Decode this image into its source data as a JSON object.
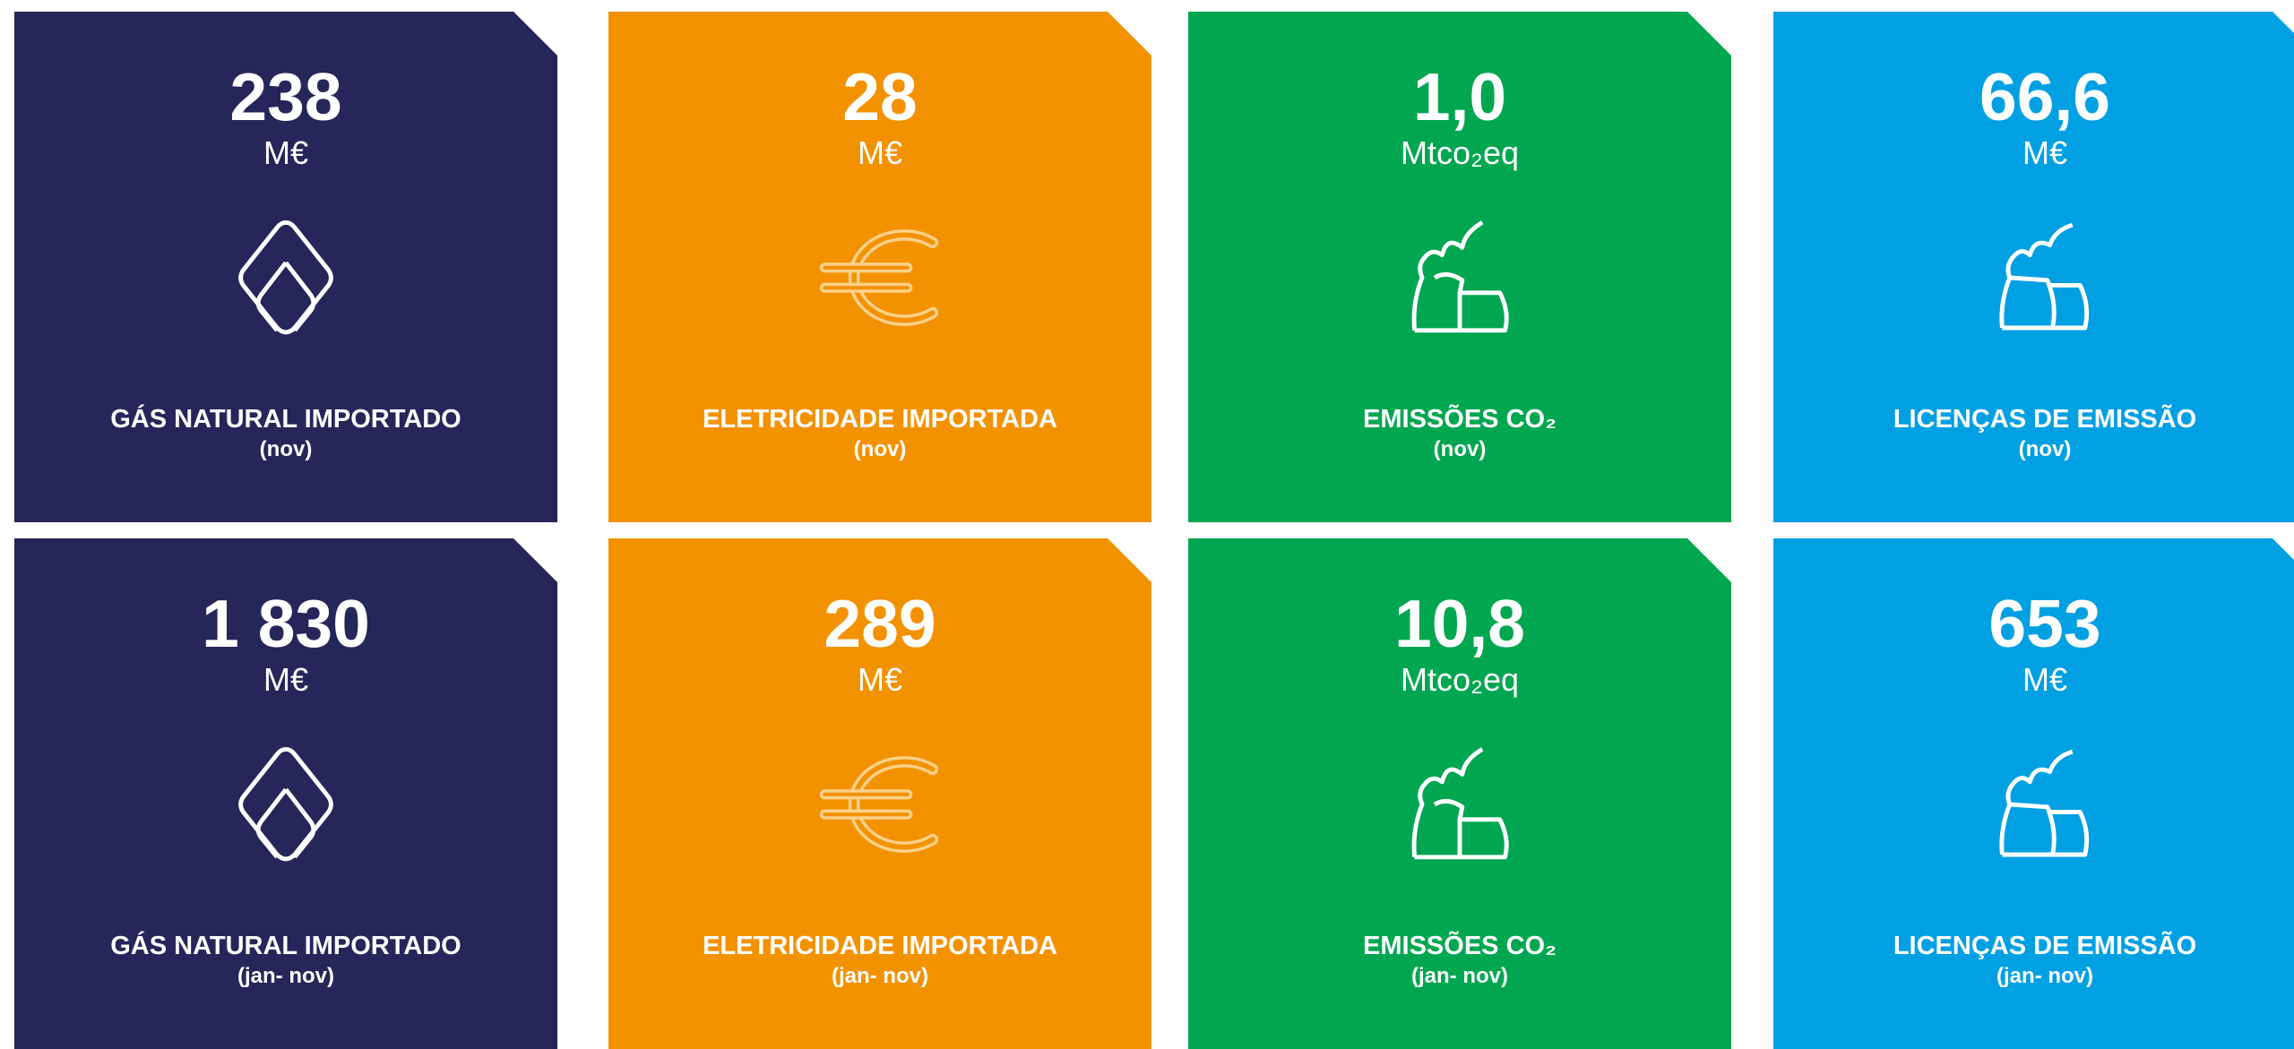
{
  "cards": [
    {
      "value": "238",
      "unit": "M€",
      "label": "GÁS NATURAL IMPORTADO",
      "period": "(nov)"
    },
    {
      "value": "28",
      "unit": "M€",
      "label": "ELETRICIDADE IMPORTADA",
      "period": "(nov)"
    },
    {
      "value": "1,0",
      "unit": "Mtco₂eq",
      "label": "EMISSÕES CO₂",
      "period": "(nov)"
    },
    {
      "value": "66,6",
      "unit": "M€",
      "label": "LICENÇAS DE EMISSÃO",
      "period": "(nov)"
    },
    {
      "value": "1 830",
      "unit": "M€",
      "label": "GÁS NATURAL IMPORTADO",
      "period": "(jan- nov)"
    },
    {
      "value": "289",
      "unit": "M€",
      "label": "ELETRICIDADE IMPORTADA",
      "period": "(jan- nov)"
    },
    {
      "value": "10,8",
      "unit": "Mtco₂eq",
      "label": "EMISSÕES CO₂",
      "period": "(jan- nov)"
    },
    {
      "value": "653",
      "unit": "M€",
      "label": "LICENÇAS DE EMISSÃO",
      "period": "(jan- nov)"
    }
  ]
}
